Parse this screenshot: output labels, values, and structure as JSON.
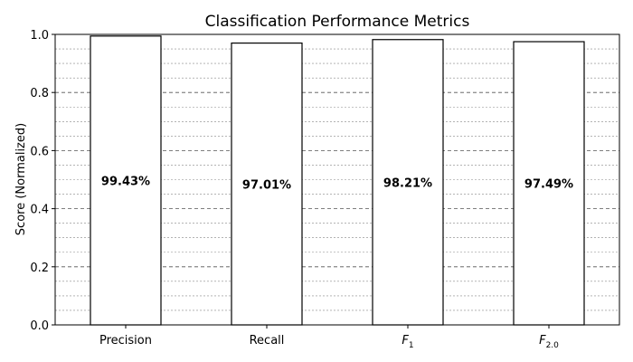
{
  "chart_data": {
    "type": "bar",
    "title": "Classification Performance Metrics",
    "xlabel": "",
    "ylabel": "Score (Normalized)",
    "ylim": [
      0,
      1.0
    ],
    "yticks": [
      0.0,
      0.2,
      0.4,
      0.6,
      0.8,
      1.0
    ],
    "ytick_labels": [
      "0.0",
      "0.2",
      "0.4",
      "0.6",
      "0.8",
      "1.0"
    ],
    "grid": "horizontal dashed, major every 0.2, minor every 0.05",
    "categories": [
      {
        "main": "Precision",
        "sub": "",
        "italic": false
      },
      {
        "main": "Recall",
        "sub": "",
        "italic": false
      },
      {
        "main": "F",
        "sub": "1",
        "italic": true
      },
      {
        "main": "F",
        "sub": "2.0",
        "italic": true
      }
    ],
    "values": [
      0.9943,
      0.9701,
      0.9821,
      0.9749
    ],
    "data_labels": [
      "99.43%",
      "97.01%",
      "98.21%",
      "97.49%"
    ],
    "bar_fill": "#ffffff",
    "bar_edge": "#000000"
  }
}
